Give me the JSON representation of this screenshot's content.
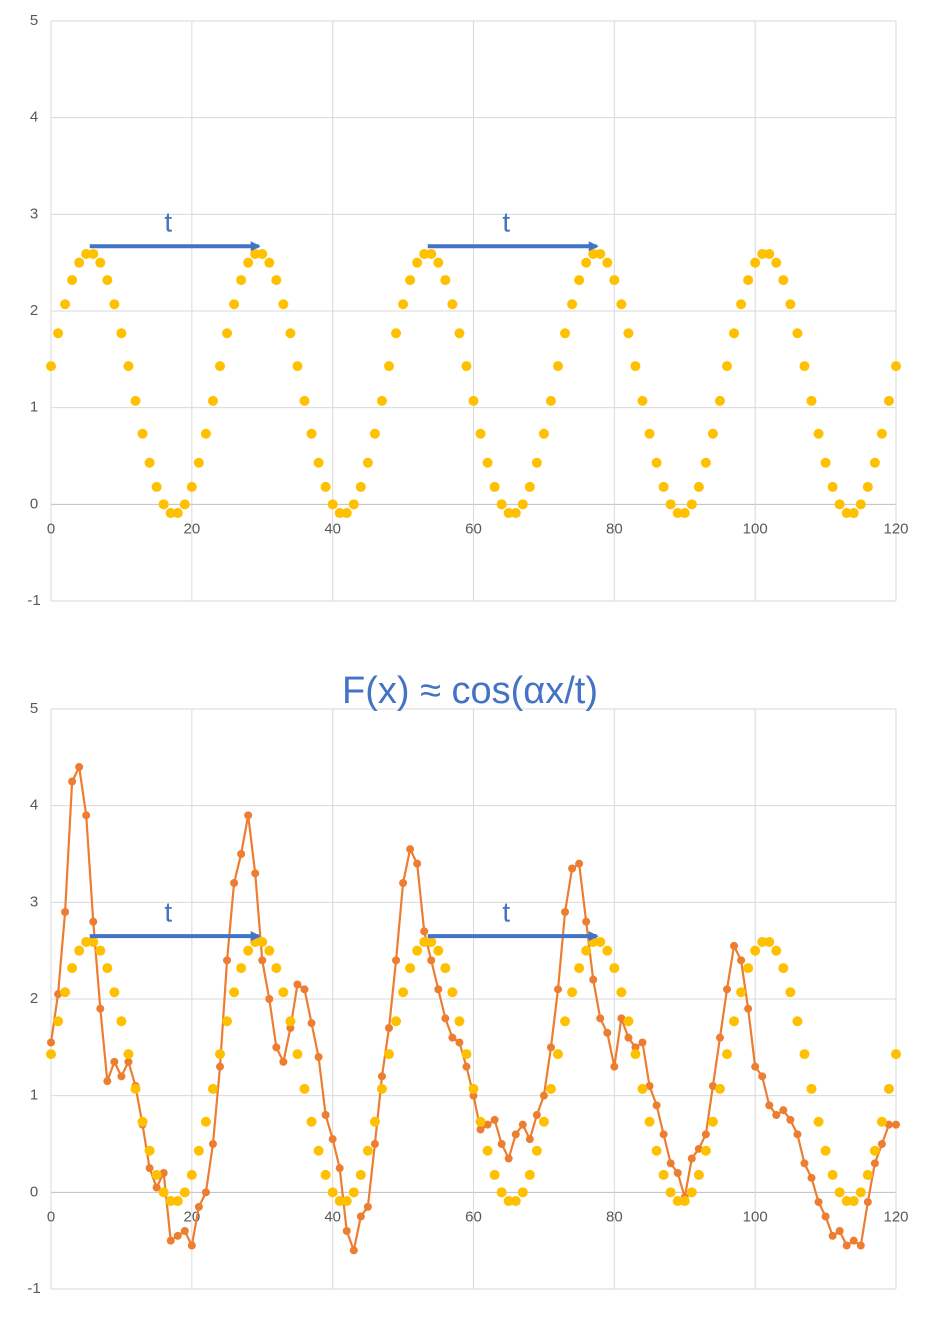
{
  "chart_data": [
    {
      "type": "scatter",
      "x": [
        0,
        1,
        2,
        3,
        4,
        5,
        6,
        7,
        8,
        9,
        10,
        11,
        12,
        13,
        14,
        15,
        16,
        17,
        18,
        19,
        20,
        21,
        22,
        23,
        24,
        25,
        26,
        27,
        28,
        29,
        30,
        31,
        32,
        33,
        34,
        35,
        36,
        37,
        38,
        39,
        40,
        41,
        42,
        43,
        44,
        45,
        46,
        47,
        48,
        49,
        50,
        51,
        52,
        53,
        54,
        55,
        56,
        57,
        58,
        59,
        60,
        61,
        62,
        63,
        64,
        65,
        66,
        67,
        68,
        69,
        70,
        71,
        72,
        73,
        74,
        75,
        76,
        77,
        78,
        79,
        80,
        81,
        82,
        83,
        84,
        85,
        86,
        87,
        88,
        89,
        90,
        91,
        92,
        93,
        94,
        95,
        96,
        97,
        98,
        99,
        100,
        101,
        102,
        103,
        104,
        105,
        106,
        107,
        108,
        109,
        110,
        111,
        112,
        113,
        114,
        115,
        116,
        117,
        118,
        119,
        120
      ],
      "series": [
        {
          "color": "#ffc000",
          "line": false,
          "values": [
            1.43,
            1.77,
            2.07,
            2.32,
            2.5,
            2.59,
            2.59,
            2.5,
            2.32,
            2.07,
            1.77,
            1.43,
            1.07,
            0.73,
            0.43,
            0.18,
            0,
            -0.09,
            -0.09,
            0,
            0.18,
            0.43,
            0.73,
            1.07,
            1.43,
            1.77,
            2.07,
            2.32,
            2.5,
            2.59,
            2.59,
            2.5,
            2.32,
            2.07,
            1.77,
            1.43,
            1.07,
            0.73,
            0.43,
            0.18,
            0,
            -0.09,
            -0.09,
            0,
            0.18,
            0.43,
            0.73,
            1.07,
            1.43,
            1.77,
            2.07,
            2.32,
            2.5,
            2.59,
            2.59,
            2.5,
            2.32,
            2.07,
            1.77,
            1.43,
            1.07,
            0.73,
            0.43,
            0.18,
            0,
            -0.09,
            -0.09,
            0,
            0.18,
            0.43,
            0.73,
            1.07,
            1.43,
            1.77,
            2.07,
            2.32,
            2.5,
            2.59,
            2.59,
            2.5,
            2.32,
            2.07,
            1.77,
            1.43,
            1.07,
            0.73,
            0.43,
            0.18,
            0,
            -0.09,
            -0.09,
            0,
            0.18,
            0.43,
            0.73,
            1.07,
            1.43,
            1.77,
            2.07,
            2.32,
            2.5,
            2.59,
            2.59,
            2.5,
            2.32,
            2.07,
            1.77,
            1.43,
            1.07,
            0.73,
            0.43,
            0.18,
            0,
            -0.09,
            -0.09,
            0,
            0.18,
            0.43,
            0.73,
            1.07,
            1.43
          ]
        }
      ],
      "xlim": [
        0,
        120
      ],
      "ylim": [
        -1,
        5
      ],
      "xticks": [
        0,
        20,
        40,
        60,
        80,
        100,
        120
      ],
      "yticks": [
        -1,
        0,
        1,
        2,
        3,
        4,
        5
      ],
      "grid": true,
      "annotations": [
        {
          "label": "t",
          "x0": 5.5,
          "x1": 29.5,
          "y": 2.67
        },
        {
          "label": "t",
          "x0": 53.5,
          "x1": 77.5,
          "y": 2.67
        }
      ]
    },
    {
      "type": "scatter",
      "title": "F(x) ≈ cos(αx/t)",
      "x": [
        0,
        1,
        2,
        3,
        4,
        5,
        6,
        7,
        8,
        9,
        10,
        11,
        12,
        13,
        14,
        15,
        16,
        17,
        18,
        19,
        20,
        21,
        22,
        23,
        24,
        25,
        26,
        27,
        28,
        29,
        30,
        31,
        32,
        33,
        34,
        35,
        36,
        37,
        38,
        39,
        40,
        41,
        42,
        43,
        44,
        45,
        46,
        47,
        48,
        49,
        50,
        51,
        52,
        53,
        54,
        55,
        56,
        57,
        58,
        59,
        60,
        61,
        62,
        63,
        64,
        65,
        66,
        67,
        68,
        69,
        70,
        71,
        72,
        73,
        74,
        75,
        76,
        77,
        78,
        79,
        80,
        81,
        82,
        83,
        84,
        85,
        86,
        87,
        88,
        89,
        90,
        91,
        92,
        93,
        94,
        95,
        96,
        97,
        98,
        99,
        100,
        101,
        102,
        103,
        104,
        105,
        106,
        107,
        108,
        109,
        110,
        111,
        112,
        113,
        114,
        115,
        116,
        117,
        118,
        119,
        120
      ],
      "series": [
        {
          "color": "#ed7d31",
          "line": true,
          "values": [
            1.55,
            2.05,
            2.9,
            4.25,
            4.4,
            3.9,
            2.8,
            1.9,
            1.15,
            1.35,
            1.2,
            1.35,
            1.1,
            0.7,
            0.25,
            0.05,
            0.2,
            -0.5,
            -0.45,
            -0.4,
            -0.55,
            -0.15,
            0,
            0.5,
            1.3,
            2.4,
            3.2,
            3.5,
            3.9,
            3.3,
            2.4,
            2,
            1.5,
            1.35,
            1.7,
            2.15,
            2.1,
            1.75,
            1.4,
            0.8,
            0.55,
            0.25,
            -0.4,
            -0.6,
            -0.25,
            -0.15,
            0.5,
            1.2,
            1.7,
            2.4,
            3.2,
            3.55,
            3.4,
            2.7,
            2.4,
            2.1,
            1.8,
            1.6,
            1.55,
            1.3,
            1,
            0.65,
            0.7,
            0.75,
            0.5,
            0.35,
            0.6,
            0.7,
            0.55,
            0.8,
            1,
            1.5,
            2.1,
            2.9,
            3.35,
            3.4,
            2.8,
            2.2,
            1.8,
            1.65,
            1.3,
            1.8,
            1.6,
            1.5,
            1.55,
            1.1,
            0.9,
            0.6,
            0.3,
            0.2,
            -0.05,
            0.35,
            0.45,
            0.6,
            1.1,
            1.6,
            2.1,
            2.55,
            2.4,
            1.9,
            1.3,
            1.2,
            0.9,
            0.8,
            0.85,
            0.75,
            0.6,
            0.3,
            0.15,
            -0.1,
            -0.25,
            -0.45,
            -0.4,
            -0.55,
            -0.5,
            -0.55,
            -0.1,
            0.3,
            0.5,
            0.7,
            0.7
          ]
        },
        {
          "color": "#ffc000",
          "line": false,
          "values": [
            1.43,
            1.77,
            2.07,
            2.32,
            2.5,
            2.59,
            2.59,
            2.5,
            2.32,
            2.07,
            1.77,
            1.43,
            1.07,
            0.73,
            0.43,
            0.18,
            0,
            -0.09,
            -0.09,
            0,
            0.18,
            0.43,
            0.73,
            1.07,
            1.43,
            1.77,
            2.07,
            2.32,
            2.5,
            2.59,
            2.59,
            2.5,
            2.32,
            2.07,
            1.77,
            1.43,
            1.07,
            0.73,
            0.43,
            0.18,
            0,
            -0.09,
            -0.09,
            0,
            0.18,
            0.43,
            0.73,
            1.07,
            1.43,
            1.77,
            2.07,
            2.32,
            2.5,
            2.59,
            2.59,
            2.5,
            2.32,
            2.07,
            1.77,
            1.43,
            1.07,
            0.73,
            0.43,
            0.18,
            0,
            -0.09,
            -0.09,
            0,
            0.18,
            0.43,
            0.73,
            1.07,
            1.43,
            1.77,
            2.07,
            2.32,
            2.5,
            2.59,
            2.59,
            2.5,
            2.32,
            2.07,
            1.77,
            1.43,
            1.07,
            0.73,
            0.43,
            0.18,
            0,
            -0.09,
            -0.09,
            0,
            0.18,
            0.43,
            0.73,
            1.07,
            1.43,
            1.77,
            2.07,
            2.32,
            2.5,
            2.59,
            2.59,
            2.5,
            2.32,
            2.07,
            1.77,
            1.43,
            1.07,
            0.73,
            0.43,
            0.18,
            0,
            -0.09,
            -0.09,
            0,
            0.18,
            0.43,
            0.73,
            1.07,
            1.43
          ]
        }
      ],
      "xlim": [
        0,
        120
      ],
      "ylim": [
        -1,
        5
      ],
      "xticks": [
        0,
        20,
        40,
        60,
        80,
        100,
        120
      ],
      "yticks": [
        -1,
        0,
        1,
        2,
        3,
        4,
        5
      ],
      "grid": true,
      "annotations": [
        {
          "label": "t",
          "x0": 5.5,
          "x1": 29.5,
          "y": 2.65
        },
        {
          "label": "t",
          "x0": 53.5,
          "x1": 77.5,
          "y": 2.65
        }
      ]
    }
  ]
}
